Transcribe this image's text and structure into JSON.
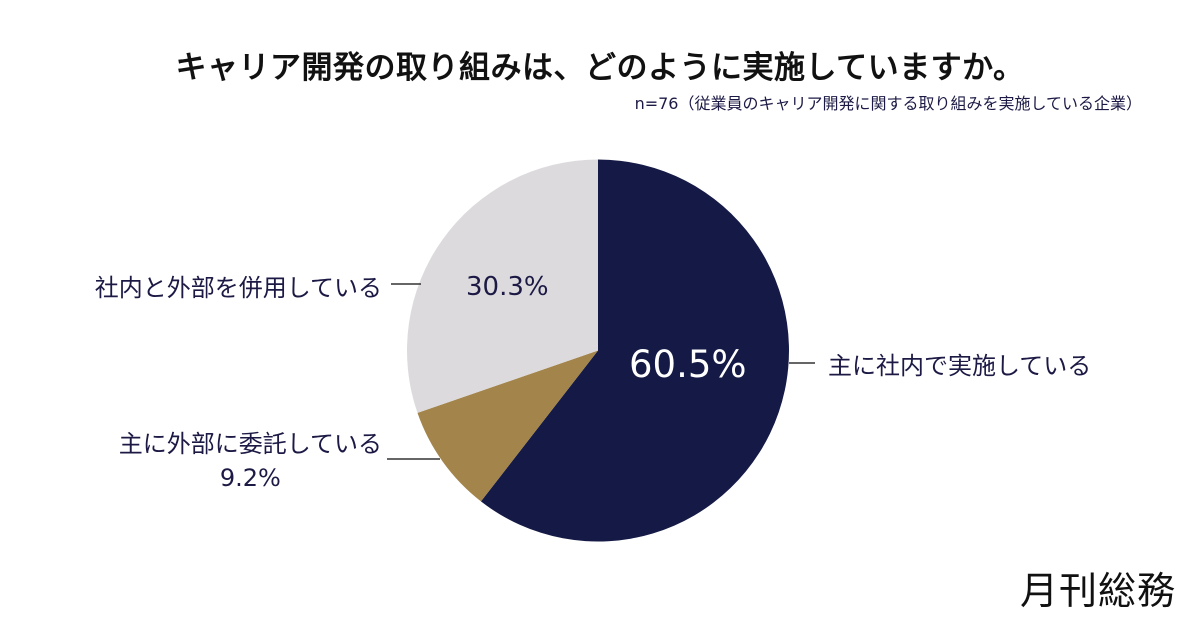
{
  "header": {
    "title": "キャリア開発の取り組みは、どのように実施していますか。",
    "subtitle": "n=76（従業員のキャリア開発に関する取り組みを実施している企業）"
  },
  "labels": {
    "internal": "主に社内で実施している",
    "both": "社内と外部を併用している",
    "external": "主に外部に委託している",
    "internal_pct": "60.5%",
    "both_pct": "30.3%",
    "external_pct": "9.2%"
  },
  "colors": {
    "internal": "#141a45",
    "external": "#a3844a",
    "both": "#dcdadd"
  },
  "brand": {
    "logo": "月刊総務"
  },
  "chart_data": {
    "type": "pie",
    "title": "キャリア開発の取り組みは、どのように実施していますか。",
    "subtitle": "n=76（従業員のキャリア開発に関する取り組みを実施している企業）",
    "categories": [
      "主に社内で実施している",
      "主に外部に委託している",
      "社内と外部を併用している"
    ],
    "values": [
      60.5,
      9.2,
      30.3
    ],
    "unit": "%",
    "start_angle": "12 o'clock, clockwise",
    "colors": [
      "#141a45",
      "#a3844a",
      "#dcdadd"
    ],
    "legend": "none (leader-line labels)"
  }
}
